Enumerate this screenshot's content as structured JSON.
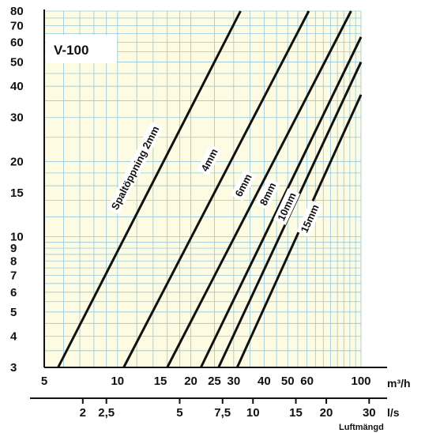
{
  "chart_data": {
    "type": "line",
    "title": "V-100",
    "x_scale": "log",
    "y_scale": "log",
    "xlim": [
      5,
      100
    ],
    "ylim": [
      3,
      80
    ],
    "grid": true,
    "x_ticks": [
      "5",
      "10",
      "15",
      "20",
      "25",
      "30",
      "40",
      "50",
      "60",
      "100"
    ],
    "x_tick_values": [
      5,
      10,
      15,
      20,
      25,
      30,
      40,
      50,
      60,
      100
    ],
    "y_ticks": [
      "3",
      "4",
      "5",
      "6",
      "7",
      "8",
      "9",
      "10",
      "15",
      "20",
      "30",
      "40",
      "50",
      "60",
      "70",
      "80"
    ],
    "y_tick_values": [
      3,
      4,
      5,
      6,
      7,
      8,
      9,
      10,
      15,
      20,
      30,
      40,
      50,
      60,
      70,
      80
    ],
    "x_unit": "m³/h",
    "x2_ticks": [
      "2",
      "2,5",
      "5",
      "7,5",
      "10",
      "15",
      "20",
      "30"
    ],
    "x2_tick_values": [
      2,
      2.5,
      5,
      7.5,
      10,
      15,
      20,
      30
    ],
    "x2_unit": "l/s",
    "xlabel": "Luftmängd",
    "series": [
      {
        "name": "Spaltöppning 2mm",
        "x": [
          5.7,
          32
        ],
        "y": [
          3,
          80
        ]
      },
      {
        "name": "4mm",
        "x": [
          10.6,
          61
        ],
        "y": [
          3,
          80
        ]
      },
      {
        "name": "6mm",
        "x": [
          16,
          91
        ],
        "y": [
          3,
          80
        ]
      },
      {
        "name": "8mm",
        "x": [
          22,
          100
        ],
        "y": [
          3,
          63
        ]
      },
      {
        "name": "10mm",
        "x": [
          26,
          100
        ],
        "y": [
          3,
          50
        ]
      },
      {
        "name": "15mm",
        "x": [
          31,
          100
        ],
        "y": [
          3,
          37
        ]
      }
    ]
  },
  "colors": {
    "background": "#fdfbe1",
    "grid": "#94c8e0",
    "line": "#111111"
  }
}
